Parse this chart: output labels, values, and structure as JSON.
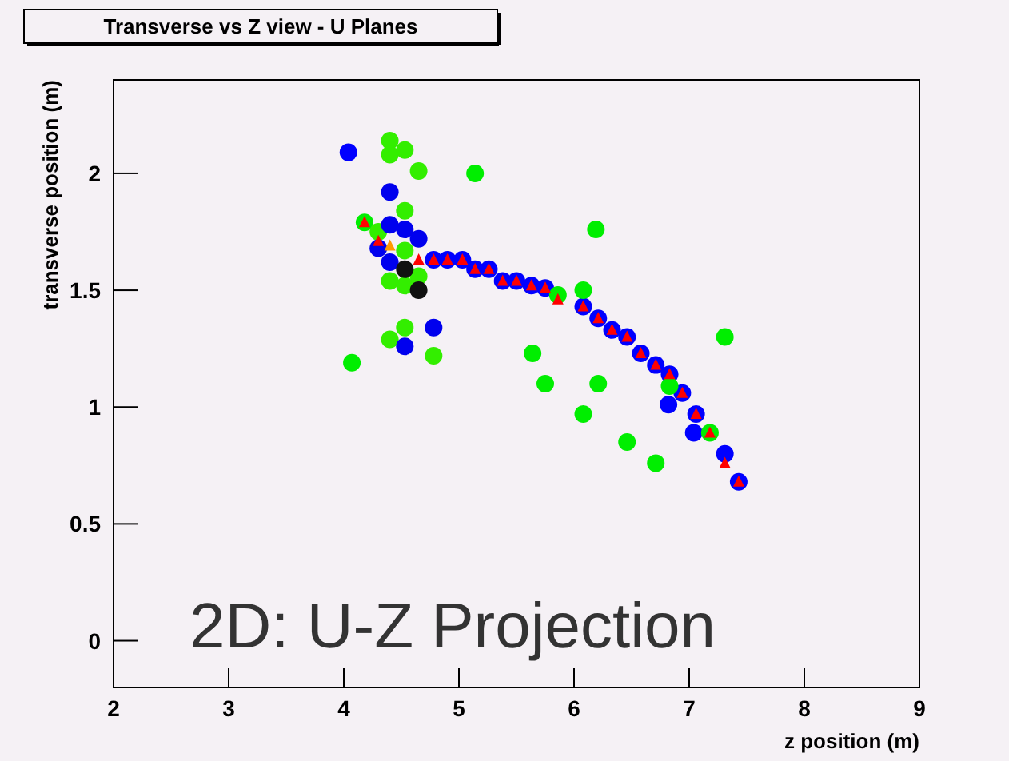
{
  "chart_data": {
    "type": "scatter",
    "title": "Transverse vs Z view - U Planes",
    "xlabel": "z position (m)",
    "ylabel": "transverse position (m)",
    "xlim": [
      2,
      9
    ],
    "xticks": [
      2,
      3,
      4,
      5,
      6,
      7,
      8,
      9
    ],
    "ylim": [
      -0.2,
      2.4
    ],
    "yticks": [
      0,
      0.5,
      1,
      1.5,
      2
    ],
    "grid": false,
    "marker": "circle",
    "annotations": [
      "2D: U-Z Projection"
    ],
    "series": [
      {
        "color": "#0000ff",
        "x": [
          4.04,
          4.78,
          4.9,
          5.03,
          5.14,
          5.26,
          5.38,
          5.5,
          5.63,
          5.75,
          6.08,
          6.21,
          6.33,
          6.46,
          6.58,
          6.71,
          6.83,
          6.94,
          7.06,
          7.43,
          6.82,
          7.04,
          7.31
        ],
        "values": [
          2.09,
          1.63,
          1.63,
          1.63,
          1.59,
          1.59,
          1.54,
          1.54,
          1.52,
          1.51,
          1.43,
          1.38,
          1.33,
          1.3,
          1.23,
          1.18,
          1.14,
          1.06,
          0.97,
          0.68,
          1.01,
          0.89,
          0.8
        ]
      },
      {
        "color": "#00ee00",
        "x": [
          4.07,
          5.14,
          6.19,
          6.08,
          5.64,
          5.75,
          6.21,
          6.08,
          6.46,
          6.71,
          7.31,
          6.83,
          4.18,
          5.86,
          7.18
        ],
        "values": [
          1.19,
          2.0,
          1.76,
          1.5,
          1.23,
          1.1,
          1.1,
          0.97,
          0.85,
          0.76,
          1.3,
          1.09,
          1.79,
          1.48,
          0.89
        ]
      },
      {
        "color": "#33ee00",
        "x": [
          4.4,
          4.4,
          4.53,
          4.65,
          4.53,
          4.3,
          4.53,
          4.65,
          4.4,
          4.53,
          4.53,
          4.4,
          4.78
        ],
        "values": [
          2.14,
          2.08,
          2.1,
          2.01,
          1.84,
          1.75,
          1.67,
          1.56,
          1.54,
          1.52,
          1.34,
          1.29,
          1.22
        ]
      },
      {
        "color": "#0000ee",
        "x": [
          4.4,
          4.4,
          4.53,
          4.65,
          4.3,
          4.4,
          4.78,
          4.53
        ],
        "values": [
          1.92,
          1.78,
          1.76,
          1.72,
          1.68,
          1.62,
          1.34,
          1.26
        ]
      },
      {
        "color": "#111111",
        "x": [
          4.53,
          4.65
        ],
        "values": [
          1.59,
          1.5
        ]
      },
      {
        "marker": "triangle",
        "color": "#ff0000",
        "x": [
          4.18,
          4.3,
          4.65,
          4.78,
          4.9,
          5.03,
          5.14,
          5.26,
          5.38,
          5.5,
          5.63,
          5.75,
          5.86,
          6.08,
          6.21,
          6.33,
          6.46,
          6.58,
          6.71,
          6.83,
          6.94,
          7.06,
          7.18,
          7.31,
          7.43
        ],
        "values": [
          1.79,
          1.71,
          1.63,
          1.63,
          1.63,
          1.63,
          1.59,
          1.59,
          1.54,
          1.54,
          1.52,
          1.51,
          1.46,
          1.43,
          1.38,
          1.33,
          1.3,
          1.23,
          1.18,
          1.14,
          1.06,
          0.97,
          0.89,
          0.76,
          0.68
        ]
      },
      {
        "marker": "triangle",
        "color": "#ff9900",
        "x": [
          4.4
        ],
        "values": [
          1.69
        ]
      }
    ]
  }
}
